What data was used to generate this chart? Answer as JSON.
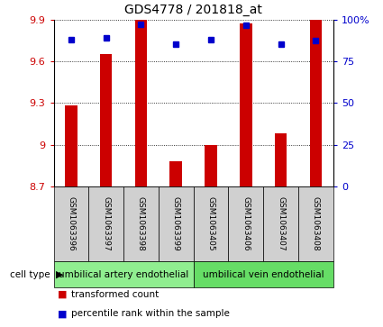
{
  "title": "GDS4778 / 201818_at",
  "samples": [
    "GSM1063396",
    "GSM1063397",
    "GSM1063398",
    "GSM1063399",
    "GSM1063405",
    "GSM1063406",
    "GSM1063407",
    "GSM1063408"
  ],
  "red_values": [
    9.28,
    9.65,
    9.9,
    8.88,
    9.0,
    9.87,
    9.08,
    9.9
  ],
  "blue_values": [
    0.88,
    0.89,
    0.97,
    0.855,
    0.88,
    0.965,
    0.855,
    0.875
  ],
  "ymin": 8.7,
  "ymax": 9.9,
  "yticks": [
    8.7,
    9.0,
    9.3,
    9.6,
    9.9
  ],
  "ytick_labels": [
    "8.7",
    "9",
    "9.3",
    "9.6",
    "9.9"
  ],
  "right_yticks": [
    0,
    25,
    50,
    75,
    100
  ],
  "right_ytick_labels": [
    "0",
    "25",
    "50",
    "75",
    "100%"
  ],
  "groups": [
    {
      "label": "umbilical artery endothelial",
      "indices": [
        0,
        1,
        2,
        3
      ],
      "color": "#90ee90"
    },
    {
      "label": "umbilical vein endothelial",
      "indices": [
        4,
        5,
        6,
        7
      ],
      "color": "#66dd66"
    }
  ],
  "cell_type_label": "cell type",
  "legend_red": "transformed count",
  "legend_blue": "percentile rank within the sample",
  "bar_color": "#cc0000",
  "dot_color": "#0000cc",
  "tick_label_color_left": "#cc0000",
  "tick_label_color_right": "#0000cc",
  "sample_box_color": "#d0d0d0",
  "bar_width": 0.35
}
